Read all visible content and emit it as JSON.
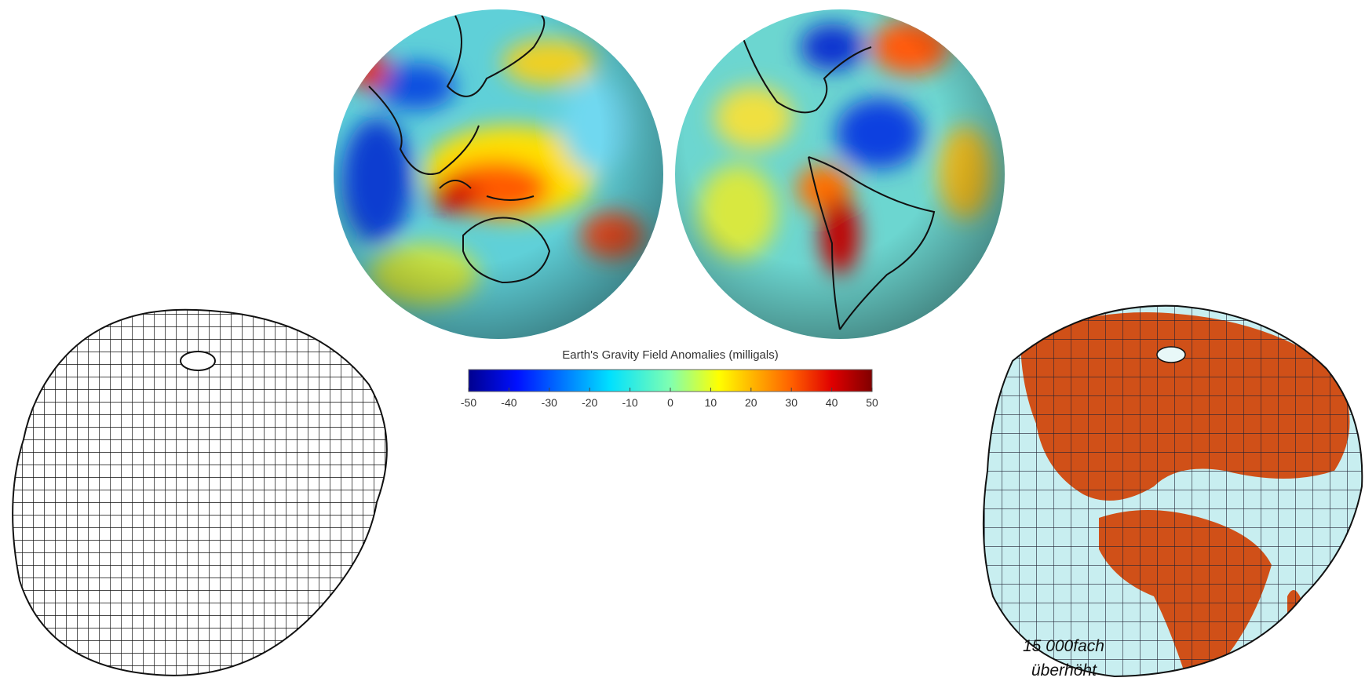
{
  "colorbar": {
    "title": "Earth's Gravity Field Anomalies (milligals)",
    "range": [
      -50,
      50
    ],
    "ticks": [
      -50,
      -40,
      -30,
      -20,
      -10,
      0,
      10,
      20,
      30,
      40,
      50
    ]
  },
  "caption": {
    "line1": "15 000fach",
    "line2": "überhöht"
  }
}
